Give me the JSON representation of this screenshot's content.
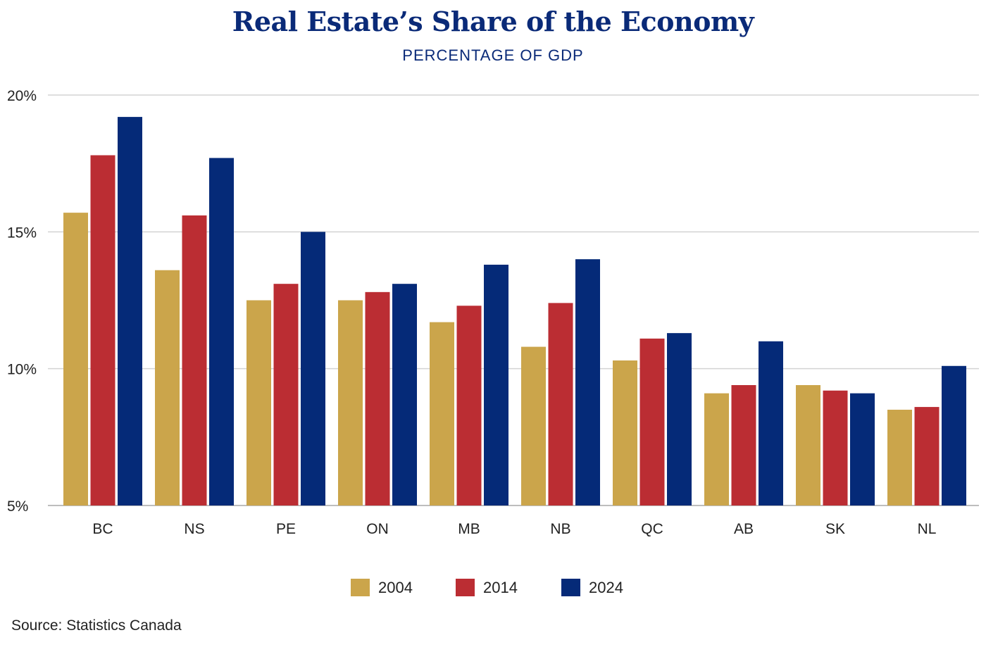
{
  "header": {
    "title": "Real Estate’s Share of the Economy",
    "subtitle": "PERCENTAGE OF GDP"
  },
  "footer": {
    "source": "Source: Statistics Canada"
  },
  "colors": {
    "s2004": "#cba54b",
    "s2014": "#bb2d33",
    "s2024": "#052a78",
    "grid": "#d3d3d3",
    "axis": "#bdbdbd"
  },
  "chart_data": {
    "type": "bar",
    "title": "Real Estate’s Share of the Economy",
    "subtitle": "PERCENTAGE OF GDP",
    "categories": [
      "BC",
      "NS",
      "PE",
      "ON",
      "MB",
      "NB",
      "QC",
      "AB",
      "SK",
      "NL"
    ],
    "series": [
      {
        "name": "2004",
        "color": "#cba54b",
        "values": [
          15.7,
          13.6,
          12.5,
          12.5,
          11.7,
          10.8,
          10.3,
          9.1,
          9.4,
          8.5
        ]
      },
      {
        "name": "2014",
        "color": "#bb2d33",
        "values": [
          17.8,
          15.6,
          13.1,
          12.8,
          12.3,
          12.4,
          11.1,
          9.4,
          9.2,
          8.6
        ]
      },
      {
        "name": "2024",
        "color": "#052a78",
        "values": [
          19.2,
          17.7,
          15.0,
          13.1,
          13.8,
          14.0,
          11.3,
          11.0,
          9.1,
          10.1
        ]
      }
    ],
    "yticks": [
      "5%",
      "10%",
      "15%",
      "20%"
    ],
    "ytick_values": [
      5,
      10,
      15,
      20
    ],
    "ylim": [
      5,
      20
    ],
    "grid": true,
    "legend_position": "bottom-center"
  }
}
